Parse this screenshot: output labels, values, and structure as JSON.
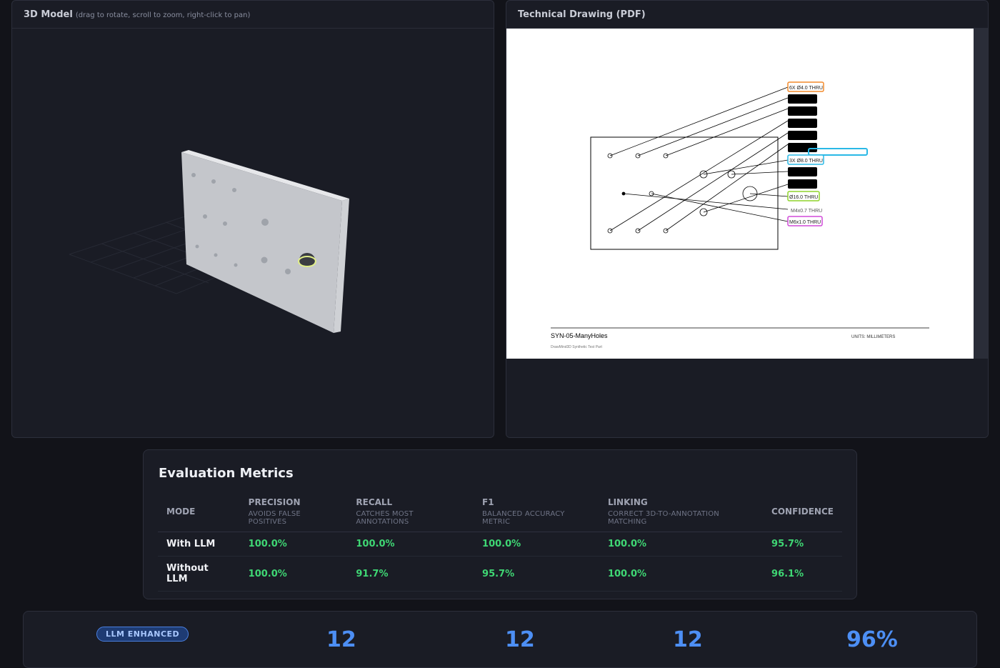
{
  "model_panel": {
    "title": "3D Model",
    "subtitle": "(drag to rotate, scroll to zoom, right-click to pan)"
  },
  "drawing_panel": {
    "title": "Technical Drawing (PDF)",
    "drawing": {
      "part_name": "SYN-05-ManyHoles",
      "company": "DrawMind3D Synthetic Test Part",
      "units": "UNITS: MILLIMETERS",
      "callouts": [
        {
          "text": "6X Ø4.0 THRU",
          "color": "#f28a2c"
        },
        {
          "text": "3X Ø8.0 THRU",
          "color": "#29b8e6"
        },
        {
          "text": "Ø16.0 THRU",
          "color": "#8fd42b"
        },
        {
          "text": "M4x0.7 THRU",
          "color": "#555555"
        },
        {
          "text": "M6x1.0 THRU",
          "color": "#d04ad8"
        }
      ]
    }
  },
  "metrics": {
    "title": "Evaluation Metrics",
    "headers": [
      {
        "label": "MODE",
        "hint": ""
      },
      {
        "label": "PRECISION",
        "hint": "AVOIDS FALSE POSITIVES"
      },
      {
        "label": "RECALL",
        "hint": "CATCHES MOST ANNOTATIONS"
      },
      {
        "label": "F1",
        "hint": "BALANCED ACCURACY METRIC"
      },
      {
        "label": "LINKING",
        "hint": "CORRECT 3D-TO-ANNOTATION MATCHING"
      },
      {
        "label": "CONFIDENCE",
        "hint": ""
      }
    ],
    "rows": [
      {
        "mode": "With LLM",
        "precision": "100.0%",
        "recall": "100.0%",
        "f1": "100.0%",
        "linking": "100.0%",
        "confidence": "95.7%"
      },
      {
        "mode": "Without LLM",
        "precision": "100.0%",
        "recall": "91.7%",
        "f1": "95.7%",
        "linking": "100.0%",
        "confidence": "96.1%"
      }
    ],
    "value_color": "#3fd774"
  },
  "summary": {
    "badge": "LLM ENHANCED",
    "stats": [
      "12",
      "12",
      "12",
      "96%"
    ]
  }
}
